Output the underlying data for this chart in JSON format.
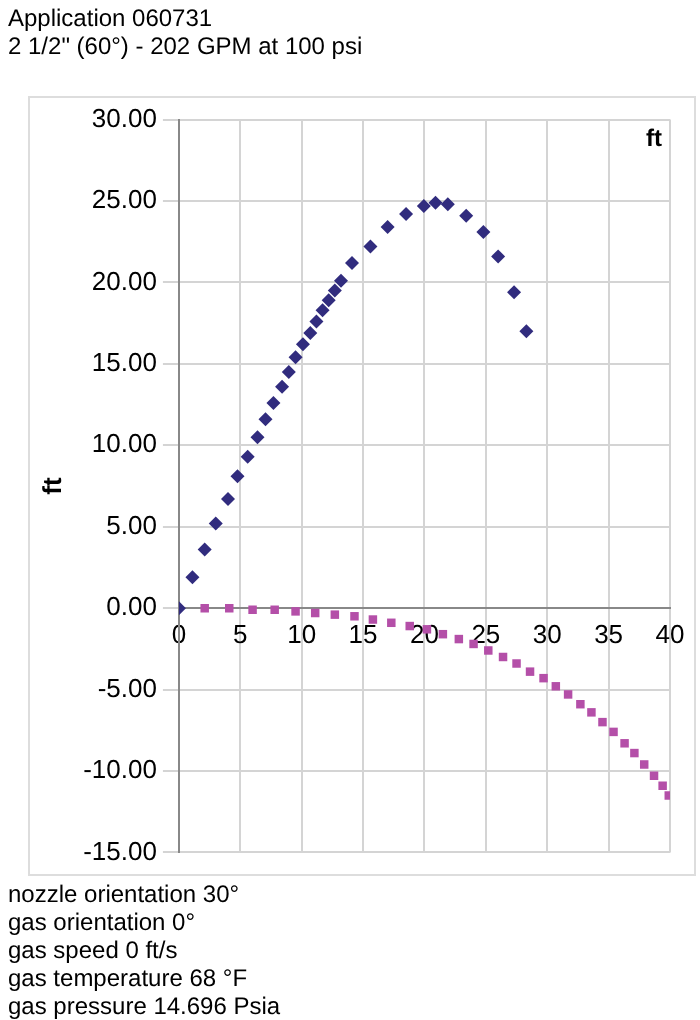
{
  "chart_data": {
    "type": "scatter",
    "title": "Application 060731",
    "subtitle": "2 1/2\" (60°)  - 202 GPM  at  100 psi",
    "ylabel": "ft",
    "annotations": [
      "ft",
      "nozzle orientation  30°",
      "gas orientation  0°",
      "gas speed  0 ft/s",
      "gas temperature  68 °F",
      "gas pressure  14.696 Psia"
    ],
    "xlim": [
      0,
      40
    ],
    "xticks": [
      0,
      5,
      10,
      15,
      20,
      25,
      30,
      35,
      40
    ],
    "ylim": [
      -15,
      30
    ],
    "yticks": [
      {
        "value": -15,
        "label": "-15.00"
      },
      {
        "value": -10,
        "label": "-10.00"
      },
      {
        "value": -5,
        "label": "-5.00"
      },
      {
        "value": 0,
        "label": "0.00"
      },
      {
        "value": 5,
        "label": "5.00"
      },
      {
        "value": 10,
        "label": "10.00"
      },
      {
        "value": 15,
        "label": "15.00"
      },
      {
        "value": 20,
        "label": "20.00"
      },
      {
        "value": 25,
        "label": "25.00"
      },
      {
        "value": 30,
        "label": "30.00"
      }
    ],
    "grid": true,
    "legend": false,
    "series": [
      {
        "color": "#312c7e",
        "marker": "diamond",
        "x": [
          0,
          1.1,
          2.1,
          3.0,
          4.0,
          4.77,
          5.6,
          6.4,
          7.05,
          7.7,
          8.4,
          8.95,
          9.5,
          10.1,
          10.7,
          11.2,
          11.7,
          12.2,
          12.7,
          13.2,
          14.1,
          15.6,
          17.0,
          18.5,
          19.95,
          20.9,
          21.9,
          23.4,
          24.8,
          26.0,
          27.3,
          28.3
        ],
        "values": [
          0,
          1.9,
          3.6,
          5.2,
          6.7,
          8.1,
          9.3,
          10.5,
          11.6,
          12.6,
          13.6,
          14.5,
          15.4,
          16.2,
          16.9,
          17.6,
          18.3,
          18.9,
          19.5,
          20.1,
          21.2,
          22.2,
          23.4,
          24.2,
          24.7,
          24.9,
          24.8,
          24.1,
          23.1,
          21.6,
          19.4,
          17.0
        ]
      },
      {
        "color": "#b44fa8",
        "marker": "square",
        "x": [
          2.1,
          4.1,
          6,
          7.8,
          9.5,
          11.1,
          12.7,
          14.3,
          15.8,
          17.3,
          18.8,
          20.2,
          21.5,
          22.8,
          24,
          25.2,
          26.4,
          27.5,
          28.6,
          29.7,
          30.7,
          31.7,
          32.7,
          33.6,
          34.5,
          35.4,
          36.3,
          37.1,
          37.9,
          38.7,
          39.4,
          39.9
        ],
        "values": [
          0,
          0,
          -0.1,
          -0.1,
          -0.2,
          -0.3,
          -0.4,
          -0.5,
          -0.7,
          -0.9,
          -1.1,
          -1.3,
          -1.6,
          -1.9,
          -2.2,
          -2.6,
          -3.0,
          -3.4,
          -3.9,
          -4.3,
          -4.8,
          -5.3,
          -5.9,
          -6.4,
          -7.0,
          -7.6,
          -8.3,
          -8.9,
          -9.6,
          -10.3,
          -10.9,
          -11.5
        ]
      }
    ]
  }
}
